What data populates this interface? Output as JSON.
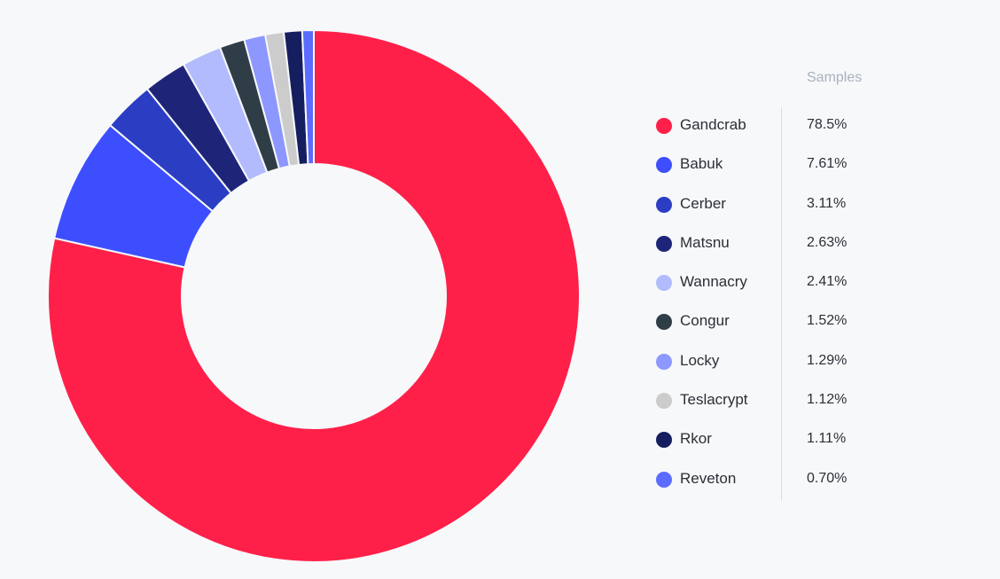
{
  "chart_data": {
    "type": "pie",
    "style": "donut",
    "legend_header": "Samples",
    "legend_position": "right",
    "slices": [
      {
        "label": "Gandcrab",
        "value": 78.5,
        "display": "78.5%",
        "color": "#ff2049"
      },
      {
        "label": "Babuk",
        "value": 7.61,
        "display": "7.61%",
        "color": "#3d4eff"
      },
      {
        "label": "Cerber",
        "value": 3.11,
        "display": "3.11%",
        "color": "#2b3ec3"
      },
      {
        "label": "Matsnu",
        "value": 2.63,
        "display": "2.63%",
        "color": "#1e2579"
      },
      {
        "label": "Wannacry",
        "value": 2.41,
        "display": "2.41%",
        "color": "#b3bbff"
      },
      {
        "label": "Congur",
        "value": 1.52,
        "display": "1.52%",
        "color": "#2f3d47"
      },
      {
        "label": "Locky",
        "value": 1.29,
        "display": "1.29%",
        "color": "#8c97ff"
      },
      {
        "label": "Teslacrypt",
        "value": 1.12,
        "display": "1.12%",
        "color": "#cccccc"
      },
      {
        "label": "Rkor",
        "value": 1.11,
        "display": "1.11%",
        "color": "#151e5e"
      },
      {
        "label": "Reveton",
        "value": 0.7,
        "display": "0.70%",
        "color": "#5c6cff"
      }
    ]
  }
}
